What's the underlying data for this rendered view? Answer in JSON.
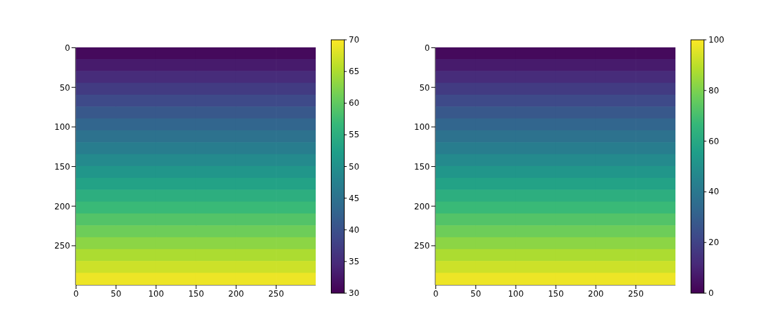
{
  "chart_data": [
    {
      "type": "heatmap",
      "x": [
        25,
        75,
        125,
        175,
        225,
        275
      ],
      "xlim": [
        -0.5,
        299.5
      ],
      "ylim": [
        299.5,
        -0.5
      ],
      "xticks": [
        0,
        50,
        100,
        150,
        200,
        250
      ],
      "yticks": [
        0,
        50,
        100,
        150,
        200,
        250
      ],
      "clim": [
        30,
        70
      ],
      "cticks": [
        30,
        35,
        40,
        45,
        50,
        55,
        60,
        65,
        70
      ],
      "cells": [
        [
          31,
          31,
          31,
          31,
          31,
          31
        ],
        [
          33,
          33,
          33,
          33,
          33,
          33
        ],
        [
          35,
          35,
          35,
          35,
          35,
          35
        ],
        [
          37,
          37,
          37,
          37,
          37,
          37
        ],
        [
          39,
          39,
          39,
          39,
          39,
          39
        ],
        [
          41,
          41,
          41,
          41,
          41,
          41
        ],
        [
          43,
          43,
          43,
          43,
          43,
          43
        ],
        [
          45,
          45,
          45,
          45,
          45,
          45
        ],
        [
          47,
          47,
          47,
          47,
          47,
          47
        ],
        [
          49,
          49,
          49,
          49,
          49,
          49
        ],
        [
          51,
          51,
          51,
          51,
          51,
          51
        ],
        [
          53,
          53,
          53,
          53,
          53,
          53
        ],
        [
          55,
          55,
          55,
          55,
          55,
          55
        ],
        [
          57,
          57,
          57,
          57,
          57,
          57
        ],
        [
          59,
          59,
          59,
          59,
          59,
          59
        ],
        [
          61,
          61,
          61,
          61,
          61,
          61
        ],
        [
          63,
          63,
          63,
          63,
          63,
          63
        ],
        [
          65,
          65,
          65,
          65,
          65,
          65
        ],
        [
          67,
          67,
          67,
          67,
          67,
          67
        ],
        [
          69,
          69,
          69,
          69,
          69,
          69
        ]
      ]
    },
    {
      "type": "heatmap",
      "x": [
        25,
        75,
        125,
        175,
        225,
        275
      ],
      "xlim": [
        -0.5,
        299.5
      ],
      "ylim": [
        299.5,
        -0.5
      ],
      "xticks": [
        0,
        50,
        100,
        150,
        200,
        250
      ],
      "yticks": [
        0,
        50,
        100,
        150,
        200,
        250
      ],
      "clim": [
        0,
        100
      ],
      "cticks": [
        0,
        20,
        40,
        60,
        80,
        100
      ],
      "cells": [
        [
          2.5,
          2.5,
          2.5,
          2.5,
          2.5,
          2.5
        ],
        [
          7.5,
          7.5,
          7.5,
          7.5,
          7.5,
          7.5
        ],
        [
          12.5,
          12.5,
          12.5,
          12.5,
          12.5,
          12.5
        ],
        [
          17.5,
          17.5,
          17.5,
          17.5,
          17.5,
          17.5
        ],
        [
          22.5,
          22.5,
          22.5,
          22.5,
          22.5,
          22.5
        ],
        [
          27.5,
          27.5,
          27.5,
          27.5,
          27.5,
          27.5
        ],
        [
          32.5,
          32.5,
          32.5,
          32.5,
          32.5,
          32.5
        ],
        [
          37.5,
          37.5,
          37.5,
          37.5,
          37.5,
          37.5
        ],
        [
          42.5,
          42.5,
          42.5,
          42.5,
          42.5,
          42.5
        ],
        [
          47.5,
          47.5,
          47.5,
          47.5,
          47.5,
          47.5
        ],
        [
          52.5,
          52.5,
          52.5,
          52.5,
          52.5,
          52.5
        ],
        [
          57.5,
          57.5,
          57.5,
          57.5,
          57.5,
          57.5
        ],
        [
          62.5,
          62.5,
          62.5,
          62.5,
          62.5,
          62.5
        ],
        [
          67.5,
          67.5,
          67.5,
          67.5,
          67.5,
          67.5
        ],
        [
          72.5,
          72.5,
          72.5,
          72.5,
          72.5,
          72.5
        ],
        [
          77.5,
          77.5,
          77.5,
          77.5,
          77.5,
          77.5
        ],
        [
          82.5,
          82.5,
          82.5,
          82.5,
          82.5,
          82.5
        ],
        [
          87.5,
          87.5,
          87.5,
          87.5,
          87.5,
          87.5
        ],
        [
          92.5,
          92.5,
          92.5,
          92.5,
          92.5,
          92.5
        ],
        [
          97.5,
          97.5,
          97.5,
          97.5,
          97.5,
          97.5
        ]
      ]
    }
  ]
}
